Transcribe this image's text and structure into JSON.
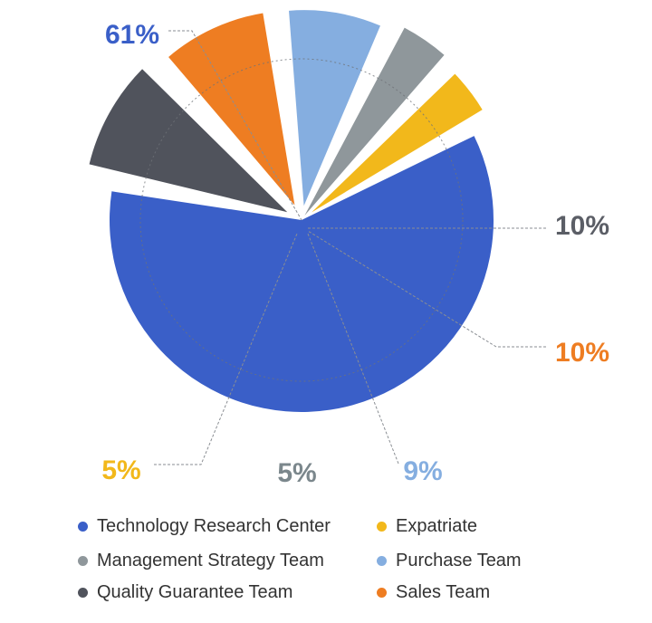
{
  "chart_data": {
    "type": "pie",
    "title": "",
    "series": [
      {
        "name": "Technology Research Center",
        "value": 61,
        "label": "61%",
        "color": "#3a5fc8"
      },
      {
        "name": "Quality Guarantee Team",
        "value": 10,
        "label": "10%",
        "color": "#50535c"
      },
      {
        "name": "Sales Team",
        "value": 10,
        "label": "10%",
        "color": "#ee7d22"
      },
      {
        "name": "Purchase Team",
        "value": 9,
        "label": "9%",
        "color": "#85aee0"
      },
      {
        "name": "Management Strategy Team",
        "value": 5,
        "label": "5%",
        "color": "#8f979b"
      },
      {
        "name": "Expatriate",
        "value": 5,
        "label": "5%",
        "color": "#f2b81b"
      }
    ],
    "label_colors": [
      "#3a5fc8",
      "#5b5e66",
      "#ee7d22",
      "#85aee0",
      "#7b878c",
      "#f2b81b"
    ],
    "legend_position": "bottom",
    "legend_order": [
      "Technology Research Center",
      "Expatriate",
      "Management Strategy Team",
      "Purchase Team",
      "Quality Guarantee Team",
      "Sales Team"
    ]
  }
}
